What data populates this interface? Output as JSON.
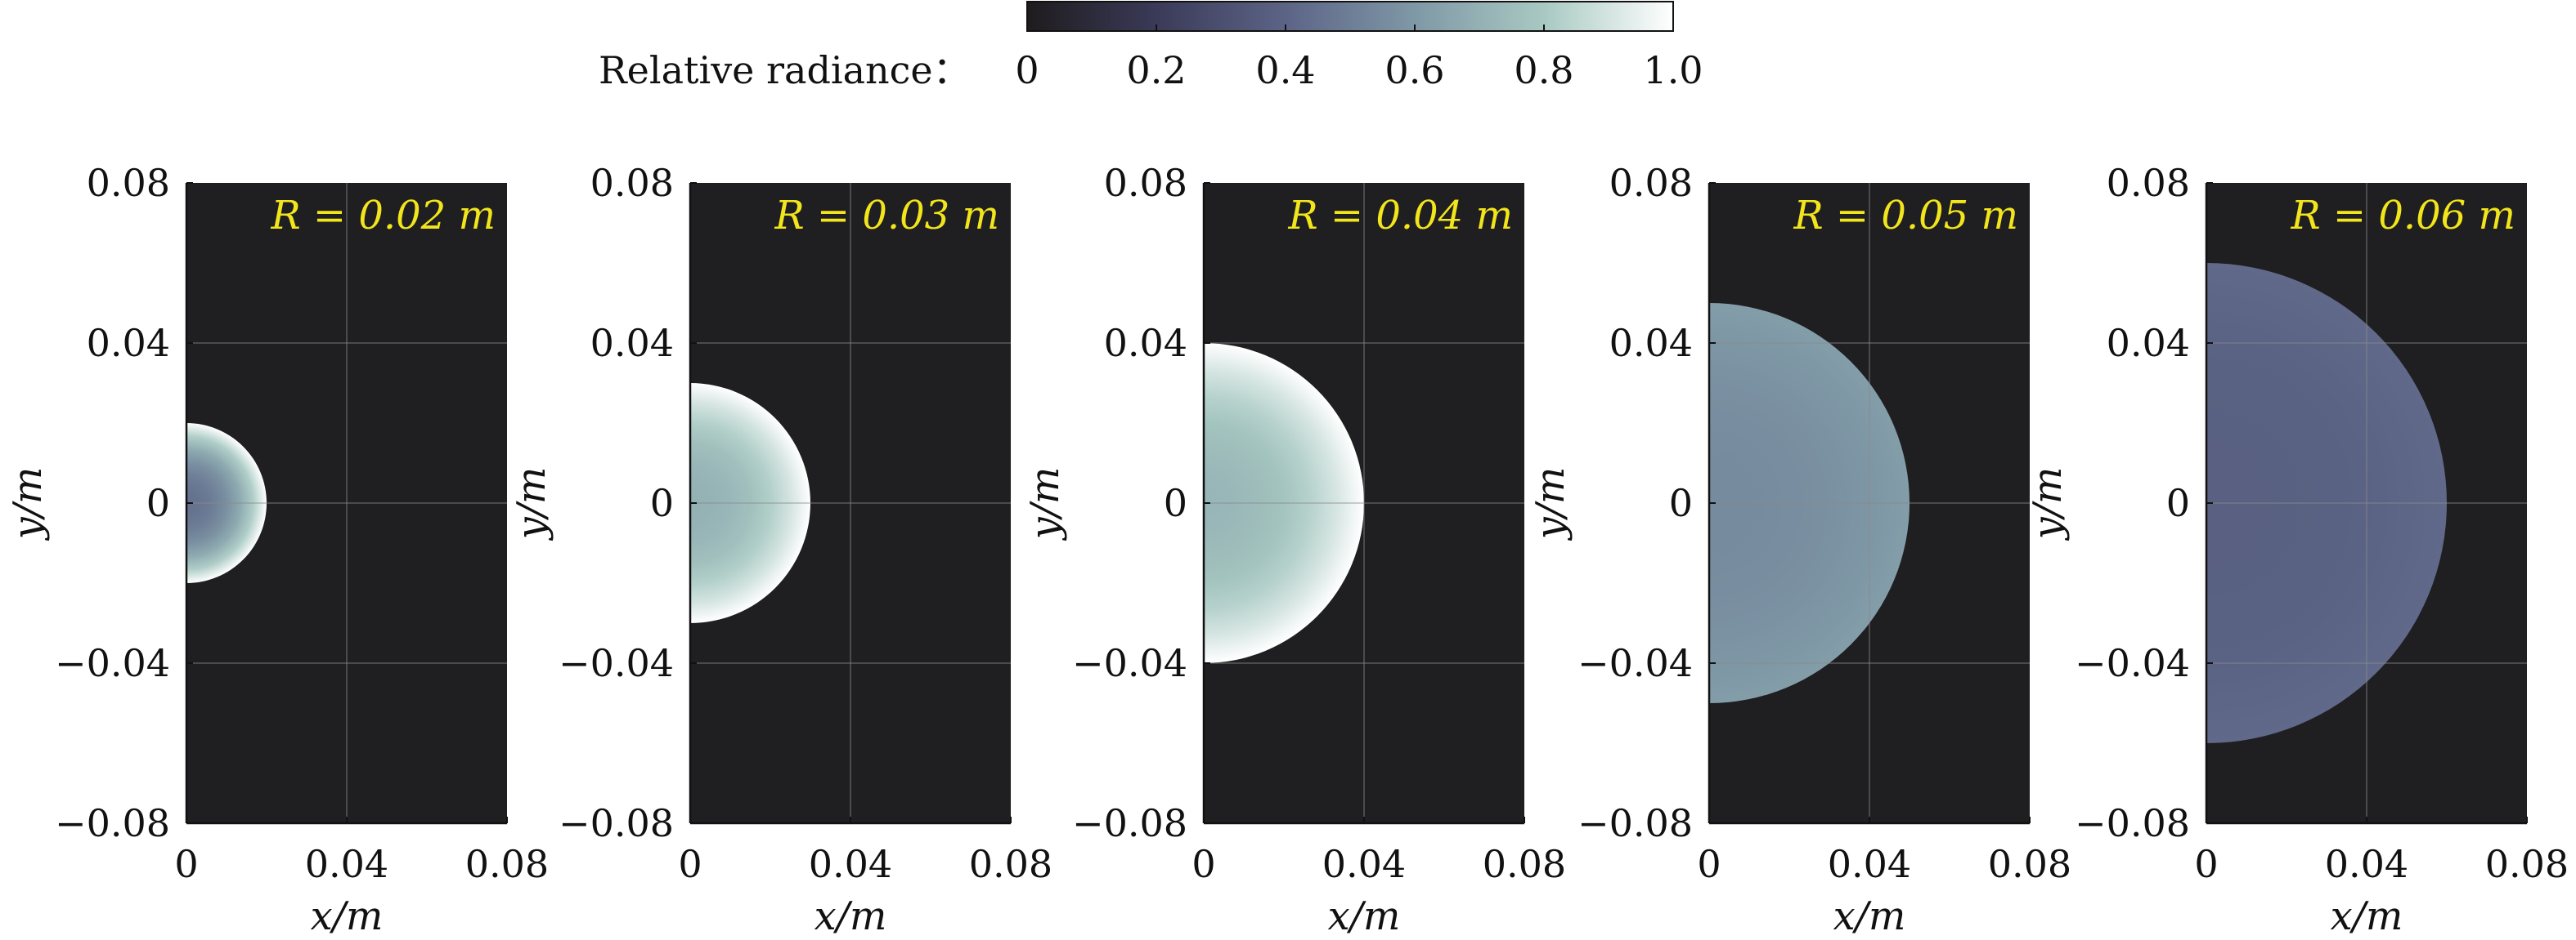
{
  "colorbar": {
    "label": "Relative radiance：",
    "ticks": [
      "0",
      "0.2",
      "0.4",
      "0.6",
      "0.8",
      "1.0"
    ],
    "stops": [
      "#1e1c1d",
      "#3b3a58",
      "#5c6486",
      "#7f98a6",
      "#a8c9c2",
      "#ffffff"
    ]
  },
  "chart_data": [
    {
      "type": "heatmap",
      "annotation": "R = 0.02 m",
      "R": 0.02,
      "edge_radiance": 1.0,
      "center_radiance": 0.45,
      "xlabel": "x/m",
      "ylabel": "y/m",
      "xlim": [
        0,
        0.08
      ],
      "ylim": [
        -0.08,
        0.08
      ],
      "xticks": [
        "0",
        "0.04",
        "0.08"
      ],
      "yticks": [
        "0.08",
        "0.04",
        "0",
        "−0.04",
        "−0.08"
      ],
      "grid": true
    },
    {
      "type": "heatmap",
      "annotation": "R = 0.03 m",
      "R": 0.03,
      "edge_radiance": 1.0,
      "center_radiance": 0.7,
      "xlabel": "x/m",
      "ylabel": "y/m",
      "xlim": [
        0,
        0.08
      ],
      "ylim": [
        -0.08,
        0.08
      ],
      "xticks": [
        "0",
        "0.04",
        "0.08"
      ],
      "yticks": [
        "0.08",
        "0.04",
        "0",
        "−0.04",
        "−0.08"
      ],
      "grid": true
    },
    {
      "type": "heatmap",
      "annotation": "R = 0.04 m",
      "R": 0.04,
      "edge_radiance": 1.0,
      "center_radiance": 0.72,
      "xlabel": "x/m",
      "ylabel": "y/m",
      "xlim": [
        0,
        0.08
      ],
      "ylim": [
        -0.08,
        0.08
      ],
      "xticks": [
        "0",
        "0.04",
        "0.08"
      ],
      "yticks": [
        "0.08",
        "0.04",
        "0",
        "−0.04",
        "−0.08"
      ],
      "grid": true
    },
    {
      "type": "heatmap",
      "annotation": "R = 0.05 m",
      "R": 0.05,
      "edge_radiance": 0.62,
      "center_radiance": 0.55,
      "xlabel": "x/m",
      "ylabel": "y/m",
      "xlim": [
        0,
        0.08
      ],
      "ylim": [
        -0.08,
        0.08
      ],
      "xticks": [
        "0",
        "0.04",
        "0.08"
      ],
      "yticks": [
        "0.08",
        "0.04",
        "0",
        "−0.04",
        "−0.08"
      ],
      "grid": true
    },
    {
      "type": "heatmap",
      "annotation": "R = 0.06 m",
      "R": 0.06,
      "edge_radiance": 0.42,
      "center_radiance": 0.38,
      "xlabel": "x/m",
      "ylabel": "y/m",
      "xlim": [
        0,
        0.08
      ],
      "ylim": [
        -0.08,
        0.08
      ],
      "xticks": [
        "0",
        "0.04",
        "0.08"
      ],
      "yticks": [
        "0.08",
        "0.04",
        "0",
        "−0.04",
        "−0.08"
      ],
      "grid": true
    }
  ]
}
